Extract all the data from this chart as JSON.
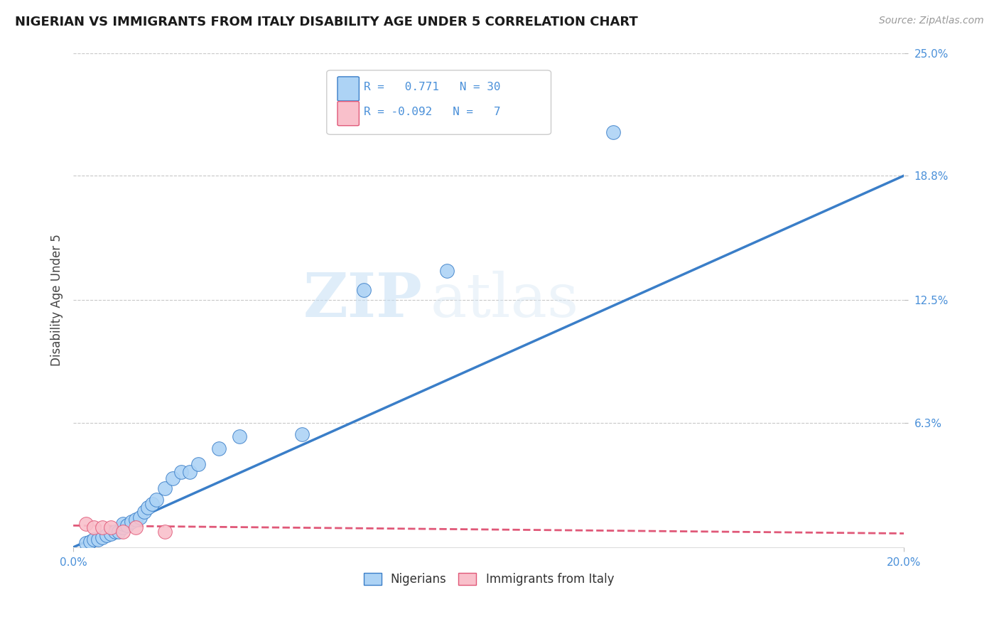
{
  "title": "NIGERIAN VS IMMIGRANTS FROM ITALY DISABILITY AGE UNDER 5 CORRELATION CHART",
  "source": "Source: ZipAtlas.com",
  "ylabel": "Disability Age Under 5",
  "xlim": [
    0.0,
    0.2
  ],
  "ylim": [
    0.0,
    0.25
  ],
  "ytick_vals": [
    0.063,
    0.125,
    0.188,
    0.25
  ],
  "ytick_labels": [
    "6.3%",
    "12.5%",
    "18.8%",
    "25.0%"
  ],
  "xtick_vals": [
    0.0,
    0.2
  ],
  "xtick_labels": [
    "0.0%",
    "20.0%"
  ],
  "watermark_zip": "ZIP",
  "watermark_atlas": "atlas",
  "nigerian_R": 0.771,
  "nigerian_N": 30,
  "italy_R": -0.092,
  "italy_N": 7,
  "nigerian_color": "#add3f5",
  "italy_color": "#f9c0cb",
  "nigerian_line_color": "#3a7ec8",
  "italy_line_color": "#e05878",
  "nigerian_points_x": [
    0.003,
    0.004,
    0.005,
    0.006,
    0.007,
    0.008,
    0.009,
    0.01,
    0.011,
    0.012,
    0.012,
    0.013,
    0.014,
    0.015,
    0.016,
    0.017,
    0.018,
    0.019,
    0.02,
    0.022,
    0.024,
    0.026,
    0.028,
    0.03,
    0.035,
    0.04,
    0.055,
    0.07,
    0.09,
    0.13
  ],
  "nigerian_points_y": [
    0.002,
    0.003,
    0.004,
    0.004,
    0.005,
    0.006,
    0.007,
    0.008,
    0.008,
    0.01,
    0.012,
    0.011,
    0.013,
    0.014,
    0.015,
    0.018,
    0.02,
    0.022,
    0.024,
    0.03,
    0.035,
    0.038,
    0.038,
    0.042,
    0.05,
    0.056,
    0.057,
    0.13,
    0.14,
    0.21
  ],
  "italy_points_x": [
    0.003,
    0.005,
    0.007,
    0.009,
    0.012,
    0.015,
    0.022
  ],
  "italy_points_y": [
    0.012,
    0.01,
    0.01,
    0.01,
    0.008,
    0.01,
    0.008
  ],
  "italy_line_y_at_0": 0.011,
  "italy_line_y_at_20": 0.007,
  "nig_line_y_at_0": 0.0,
  "nig_line_y_at_20": 0.188,
  "background_color": "#ffffff",
  "grid_color": "#c8c8c8",
  "title_color": "#1a1a1a",
  "axis_color": "#4a90d9",
  "spine_color": "#dddddd"
}
